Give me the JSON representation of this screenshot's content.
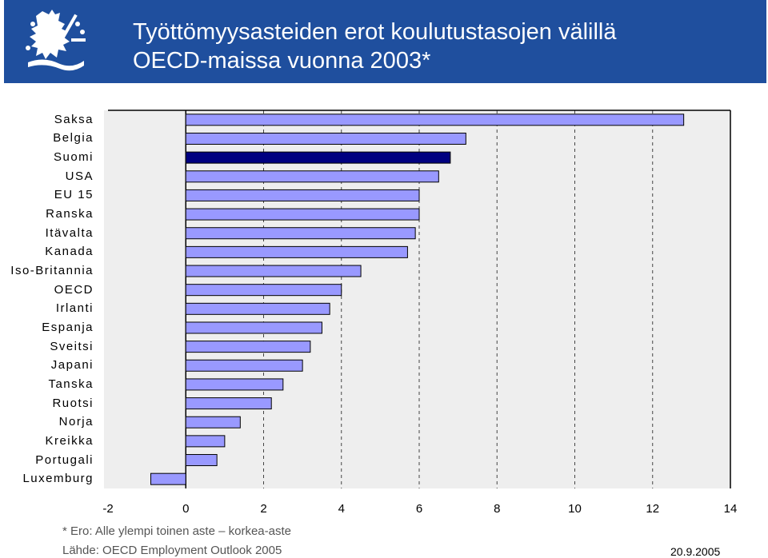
{
  "header": {
    "title_line1": "Työttömyysasteiden erot koulutustasojen välillä",
    "title_line2": "OECD-maissa vuonna 2003*",
    "logo_icon": "finnish-lion-crest-icon"
  },
  "colors": {
    "header_bg": "#1f4f9e",
    "bar_fill": "#9999ff",
    "highlight_fill": "#000080",
    "plot_bg": "#eeeeee"
  },
  "chart_data": {
    "type": "bar",
    "orientation": "horizontal",
    "title": "Työttömyysasteiden erot koulutustasojen välillä OECD-maissa vuonna 2003*",
    "categories": [
      "Saksa",
      "Belgia",
      "Suomi",
      "USA",
      "EU 15",
      "Ranska",
      "Itävalta",
      "Kanada",
      "Iso-Britannia",
      "OECD",
      "Irlanti",
      "Espanja",
      "Sveitsi",
      "Japani",
      "Tanska",
      "Ruotsi",
      "Norja",
      "Kreikka",
      "Portugali",
      "Luxemburg"
    ],
    "values": [
      12.8,
      7.2,
      6.8,
      6.5,
      6.0,
      6.0,
      5.9,
      5.7,
      4.5,
      4.0,
      3.7,
      3.5,
      3.2,
      3.0,
      2.5,
      2.2,
      1.4,
      1.0,
      0.8,
      -0.9
    ],
    "highlight": "Suomi",
    "xlim": [
      -2,
      14
    ],
    "xticks": [
      -2,
      0,
      2,
      4,
      6,
      8,
      10,
      12,
      14
    ],
    "grid": "vertical-dashed",
    "xlabel": "",
    "ylabel": ""
  },
  "footnote": "* Ero: Alle ylempi toinen aste – korkea-aste",
  "source": "Lähde: OECD Employment Outlook 2005",
  "date": "20.9.2005"
}
